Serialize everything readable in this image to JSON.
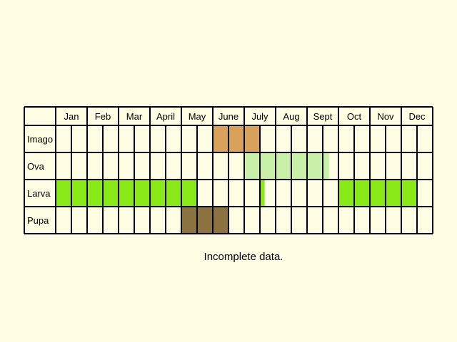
{
  "chart_data": {
    "type": "table",
    "title": "",
    "months": [
      "Jan",
      "Feb",
      "Mar",
      "April",
      "May",
      "June",
      "July",
      "Aug",
      "Sept",
      "Oct",
      "Nov",
      "Dec"
    ],
    "stages": [
      {
        "name": "Imago",
        "periods": [
          {
            "start_month": 6,
            "end_month": 7.5,
            "color": "#d8a25c"
          }
        ]
      },
      {
        "name": "Ova",
        "periods": [
          {
            "start_month": 7,
            "end_month": 9.7,
            "color": "#c8f0a8"
          }
        ]
      },
      {
        "name": "Larva",
        "periods": [
          {
            "start_month": 1,
            "end_month": 5.5,
            "color": "#88e818"
          },
          {
            "start_month": 7.5,
            "end_month": 7.65,
            "color": "#88e818"
          },
          {
            "start_month": 10,
            "end_month": 12.5,
            "color": "#88e818"
          }
        ]
      },
      {
        "name": "Pupa",
        "periods": [
          {
            "start_month": 5,
            "end_month": 6.5,
            "color": "#8c7240"
          }
        ]
      }
    ],
    "subdivisions_per_month": 2
  },
  "note": "Incomplete data.",
  "colors": {
    "background": "#fffee4",
    "grid": "#000000"
  }
}
